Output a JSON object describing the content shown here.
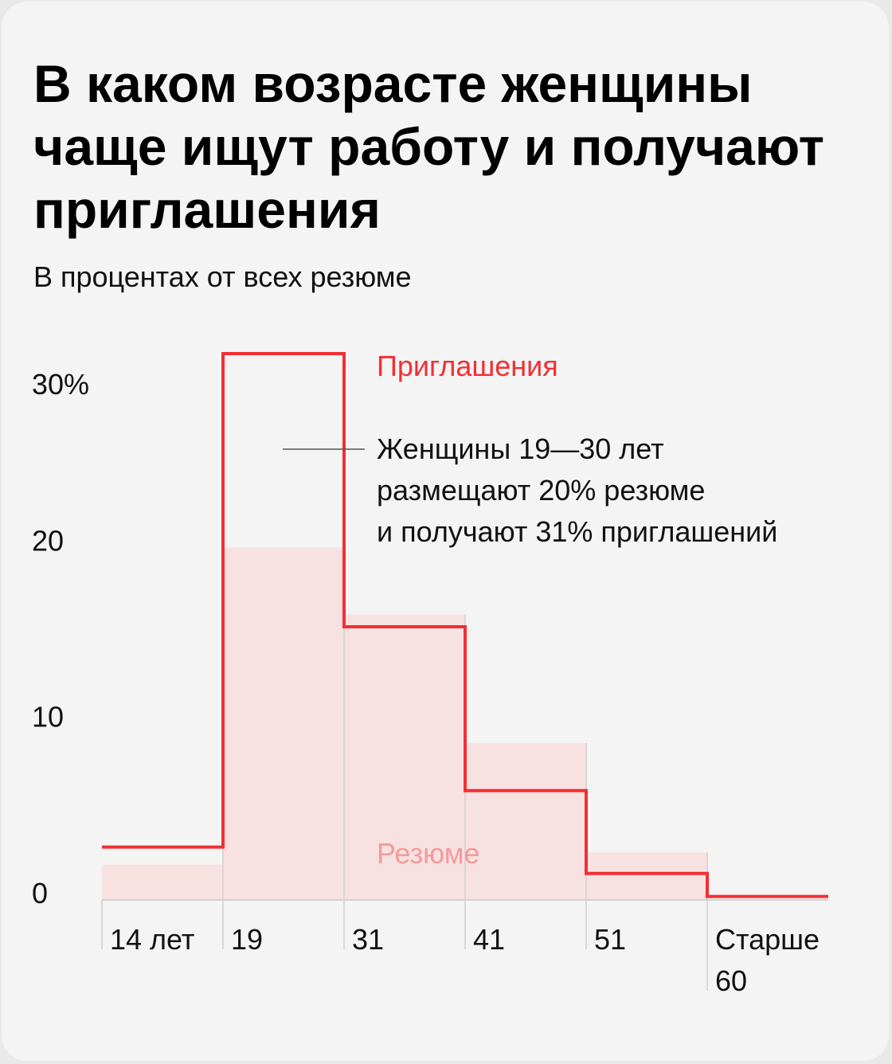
{
  "title": "В каком возрасте женщины чаще ищут работу и получают приглашения",
  "subtitle": "В процентах от всех резюме",
  "colors": {
    "invitations": "#f22f33",
    "resumes_fill": "#f8e1e1",
    "resumes_label": "#f49a9a"
  },
  "chart_data": {
    "type": "bar",
    "categories": [
      "14 лет",
      "19",
      "31",
      "41",
      "51",
      "Старше 60"
    ],
    "ylim": [
      0,
      31
    ],
    "yticks": [
      {
        "value": 0,
        "label": "0"
      },
      {
        "value": 10,
        "label": "10"
      },
      {
        "value": 20,
        "label": "20"
      },
      {
        "value": 30,
        "label": "30%"
      }
    ],
    "x_labels": [
      {
        "lines": [
          "14 лет"
        ]
      },
      {
        "lines": [
          "19"
        ]
      },
      {
        "lines": [
          "31"
        ]
      },
      {
        "lines": [
          "41"
        ]
      },
      {
        "lines": [
          "51"
        ]
      },
      {
        "lines": [
          "Старше",
          "60"
        ]
      }
    ],
    "series": [
      {
        "name": "Резюме",
        "style": "filled-bars",
        "values": [
          2.0,
          20.0,
          16.2,
          8.9,
          2.7,
          0
        ]
      },
      {
        "name": "Приглашения",
        "style": "step-line",
        "values": [
          3.0,
          31.0,
          15.5,
          6.2,
          1.5,
          0.2
        ]
      }
    ],
    "annotation": {
      "category": "19",
      "lines": [
        "Женщины 19—30 лет",
        "размещают 20% резюме",
        "и получают 31% приглашений"
      ]
    },
    "grid": false
  }
}
